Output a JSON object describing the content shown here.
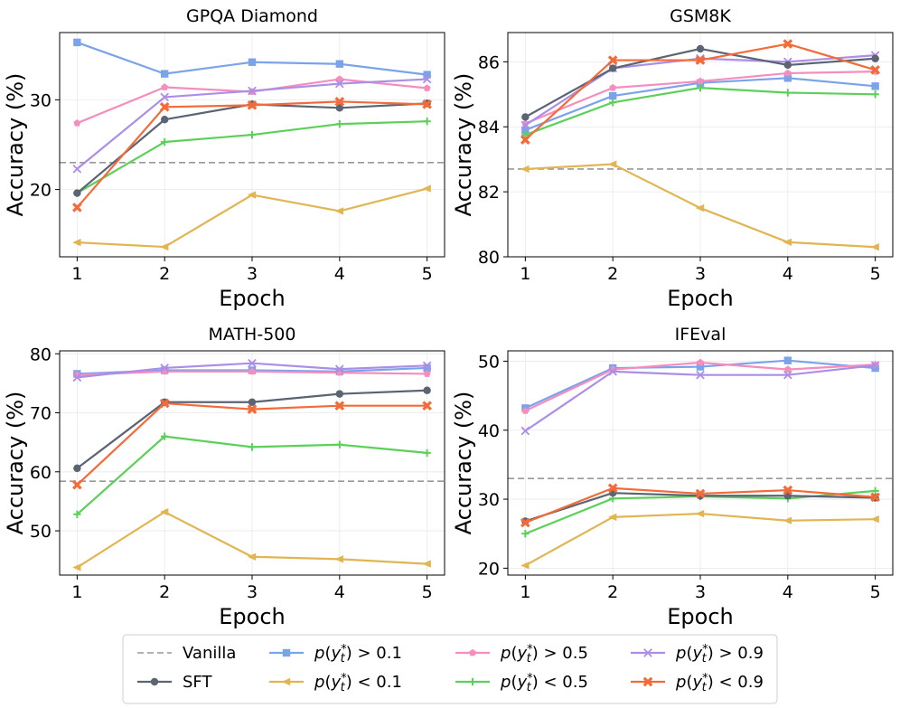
{
  "chart_data": [
    {
      "type": "line",
      "title": "GPQA Diamond",
      "xlabel": "Epoch",
      "ylabel": "Accuracy (%)",
      "x": [
        1,
        2,
        3,
        4,
        5
      ],
      "xlim": [
        0.8,
        5.2
      ],
      "ylim": [
        12.5,
        37.5
      ],
      "yticks": [
        20,
        30
      ],
      "baseline": 23.0,
      "series": [
        {
          "key": "sft",
          "values": [
            19.6,
            27.8,
            29.5,
            29.1,
            29.6
          ]
        },
        {
          "key": "gt01",
          "values": [
            36.4,
            32.9,
            34.2,
            34.0,
            32.8
          ]
        },
        {
          "key": "lt01",
          "values": [
            14.1,
            13.6,
            19.4,
            17.6,
            20.1
          ]
        },
        {
          "key": "gt05",
          "values": [
            27.4,
            31.4,
            30.9,
            32.3,
            31.3
          ]
        },
        {
          "key": "lt05",
          "values": [
            19.6,
            25.3,
            26.1,
            27.3,
            27.6
          ]
        },
        {
          "key": "gt09",
          "values": [
            22.3,
            30.3,
            31.0,
            31.8,
            32.3
          ]
        },
        {
          "key": "lt09",
          "values": [
            18.0,
            29.2,
            29.4,
            29.8,
            29.5
          ]
        }
      ]
    },
    {
      "type": "line",
      "title": "GSM8K",
      "xlabel": "Epoch",
      "ylabel": "Accuracy (%)",
      "x": [
        1,
        2,
        3,
        4,
        5
      ],
      "xlim": [
        0.8,
        5.2
      ],
      "ylim": [
        80.0,
        86.9
      ],
      "yticks": [
        80,
        82,
        84,
        86
      ],
      "baseline": 82.7,
      "series": [
        {
          "key": "sft",
          "values": [
            84.3,
            85.8,
            86.4,
            85.9,
            86.1
          ]
        },
        {
          "key": "gt01",
          "values": [
            83.9,
            84.95,
            85.35,
            85.5,
            85.25
          ]
        },
        {
          "key": "lt01",
          "values": [
            82.7,
            82.85,
            81.5,
            80.45,
            80.3
          ]
        },
        {
          "key": "gt05",
          "values": [
            84.1,
            85.2,
            85.4,
            85.65,
            85.7
          ]
        },
        {
          "key": "lt05",
          "values": [
            83.75,
            84.75,
            85.2,
            85.05,
            85.0
          ]
        },
        {
          "key": "gt09",
          "values": [
            84.05,
            85.8,
            86.1,
            86.0,
            86.2
          ]
        },
        {
          "key": "lt09",
          "values": [
            83.6,
            86.05,
            86.05,
            86.55,
            85.75
          ]
        }
      ]
    },
    {
      "type": "line",
      "title": "MATH-500",
      "xlabel": "Epoch",
      "ylabel": "Accuracy (%)",
      "x": [
        1,
        2,
        3,
        4,
        5
      ],
      "xlim": [
        0.8,
        5.2
      ],
      "ylim": [
        42.5,
        80.5
      ],
      "yticks": [
        50,
        60,
        70,
        80
      ],
      "baseline": 58.4,
      "series": [
        {
          "key": "sft",
          "values": [
            60.6,
            71.8,
            71.8,
            73.2,
            73.8
          ]
        },
        {
          "key": "gt01",
          "values": [
            76.6,
            77.2,
            77.2,
            77.0,
            77.6
          ]
        },
        {
          "key": "lt01",
          "values": [
            43.8,
            53.2,
            45.6,
            45.2,
            44.4
          ]
        },
        {
          "key": "gt05",
          "values": [
            76.4,
            77.0,
            77.0,
            76.8,
            76.6
          ]
        },
        {
          "key": "lt05",
          "values": [
            52.8,
            66.0,
            64.2,
            64.6,
            63.2
          ]
        },
        {
          "key": "gt09",
          "values": [
            76.0,
            77.6,
            78.4,
            77.4,
            78.0
          ]
        },
        {
          "key": "lt09",
          "values": [
            57.8,
            71.6,
            70.6,
            71.2,
            71.2
          ]
        }
      ]
    },
    {
      "type": "line",
      "title": "IFEval",
      "xlabel": "Epoch",
      "ylabel": "Accuracy (%)",
      "x": [
        1,
        2,
        3,
        4,
        5
      ],
      "xlim": [
        0.8,
        5.2
      ],
      "ylim": [
        19.0,
        51.5
      ],
      "yticks": [
        20,
        30,
        40,
        50
      ],
      "baseline": 33.0,
      "series": [
        {
          "key": "sft",
          "values": [
            26.8,
            30.9,
            30.5,
            30.5,
            30.2
          ]
        },
        {
          "key": "gt01",
          "values": [
            43.2,
            49.0,
            49.2,
            50.1,
            49.0
          ]
        },
        {
          "key": "lt01",
          "values": [
            20.4,
            27.4,
            27.9,
            26.9,
            27.1
          ]
        },
        {
          "key": "gt05",
          "values": [
            42.8,
            48.8,
            49.8,
            48.8,
            49.5
          ]
        },
        {
          "key": "lt05",
          "values": [
            25.0,
            30.1,
            30.4,
            30.1,
            31.2
          ]
        },
        {
          "key": "gt09",
          "values": [
            39.9,
            48.5,
            48.0,
            48.0,
            49.4
          ]
        },
        {
          "key": "lt09",
          "values": [
            26.6,
            31.6,
            30.8,
            31.3,
            30.3
          ]
        }
      ]
    }
  ],
  "series_styles": {
    "sft": {
      "color": "#5a6472",
      "marker": "circle"
    },
    "gt01": {
      "color": "#7aa3ea",
      "marker": "square"
    },
    "lt01": {
      "color": "#e0b552",
      "marker": "triangle-left"
    },
    "gt05": {
      "color": "#f58dbe",
      "marker": "pentagon"
    },
    "lt05": {
      "color": "#5cd058",
      "marker": "plus"
    },
    "gt09": {
      "color": "#ad8ee6",
      "marker": "x"
    },
    "lt09": {
      "color": "#f36b38",
      "marker": "x-filled"
    }
  },
  "baseline_color": "#999999",
  "legend": {
    "items": [
      {
        "key": "vanilla",
        "label": "Vanilla"
      },
      {
        "key": "sft",
        "label": "SFT"
      },
      {
        "key": "gt01",
        "label": "p(y*t) > 0.1"
      },
      {
        "key": "lt01",
        "label": "p(y*t) < 0.1"
      },
      {
        "key": "gt05",
        "label": "p(y*t) > 0.5"
      },
      {
        "key": "lt05",
        "label": "p(y*t) < 0.5"
      },
      {
        "key": "gt09",
        "label": "p(y*t) > 0.9"
      },
      {
        "key": "lt09",
        "label": "p(y*t) < 0.9"
      }
    ]
  }
}
